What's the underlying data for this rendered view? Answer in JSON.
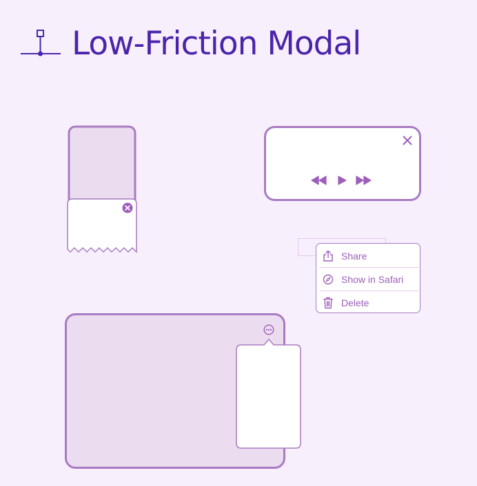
{
  "page": {
    "title": "Low-Friction Modal"
  },
  "icons": {
    "header": "anchor-pin-icon",
    "close_badge": "close-circle-icon",
    "close": "close-icon",
    "rewind": "rewind-icon",
    "play": "play-icon",
    "fast_forward": "fast-forward-icon",
    "more": "more-ellipsis-icon",
    "share": "share-icon",
    "safari": "compass-icon",
    "delete": "trash-icon"
  },
  "context_menu": {
    "items": [
      {
        "label": "Share",
        "icon": "share-icon"
      },
      {
        "label": "Show in Safari",
        "icon": "compass-icon"
      },
      {
        "label": "Delete",
        "icon": "trash-icon"
      }
    ]
  },
  "colors": {
    "background": "#f8effc",
    "title": "#4a25aa",
    "stroke": "#a77bc2",
    "accent": "#9d5fb9",
    "fill_light": "#ebdcef",
    "card": "#ffffff"
  }
}
